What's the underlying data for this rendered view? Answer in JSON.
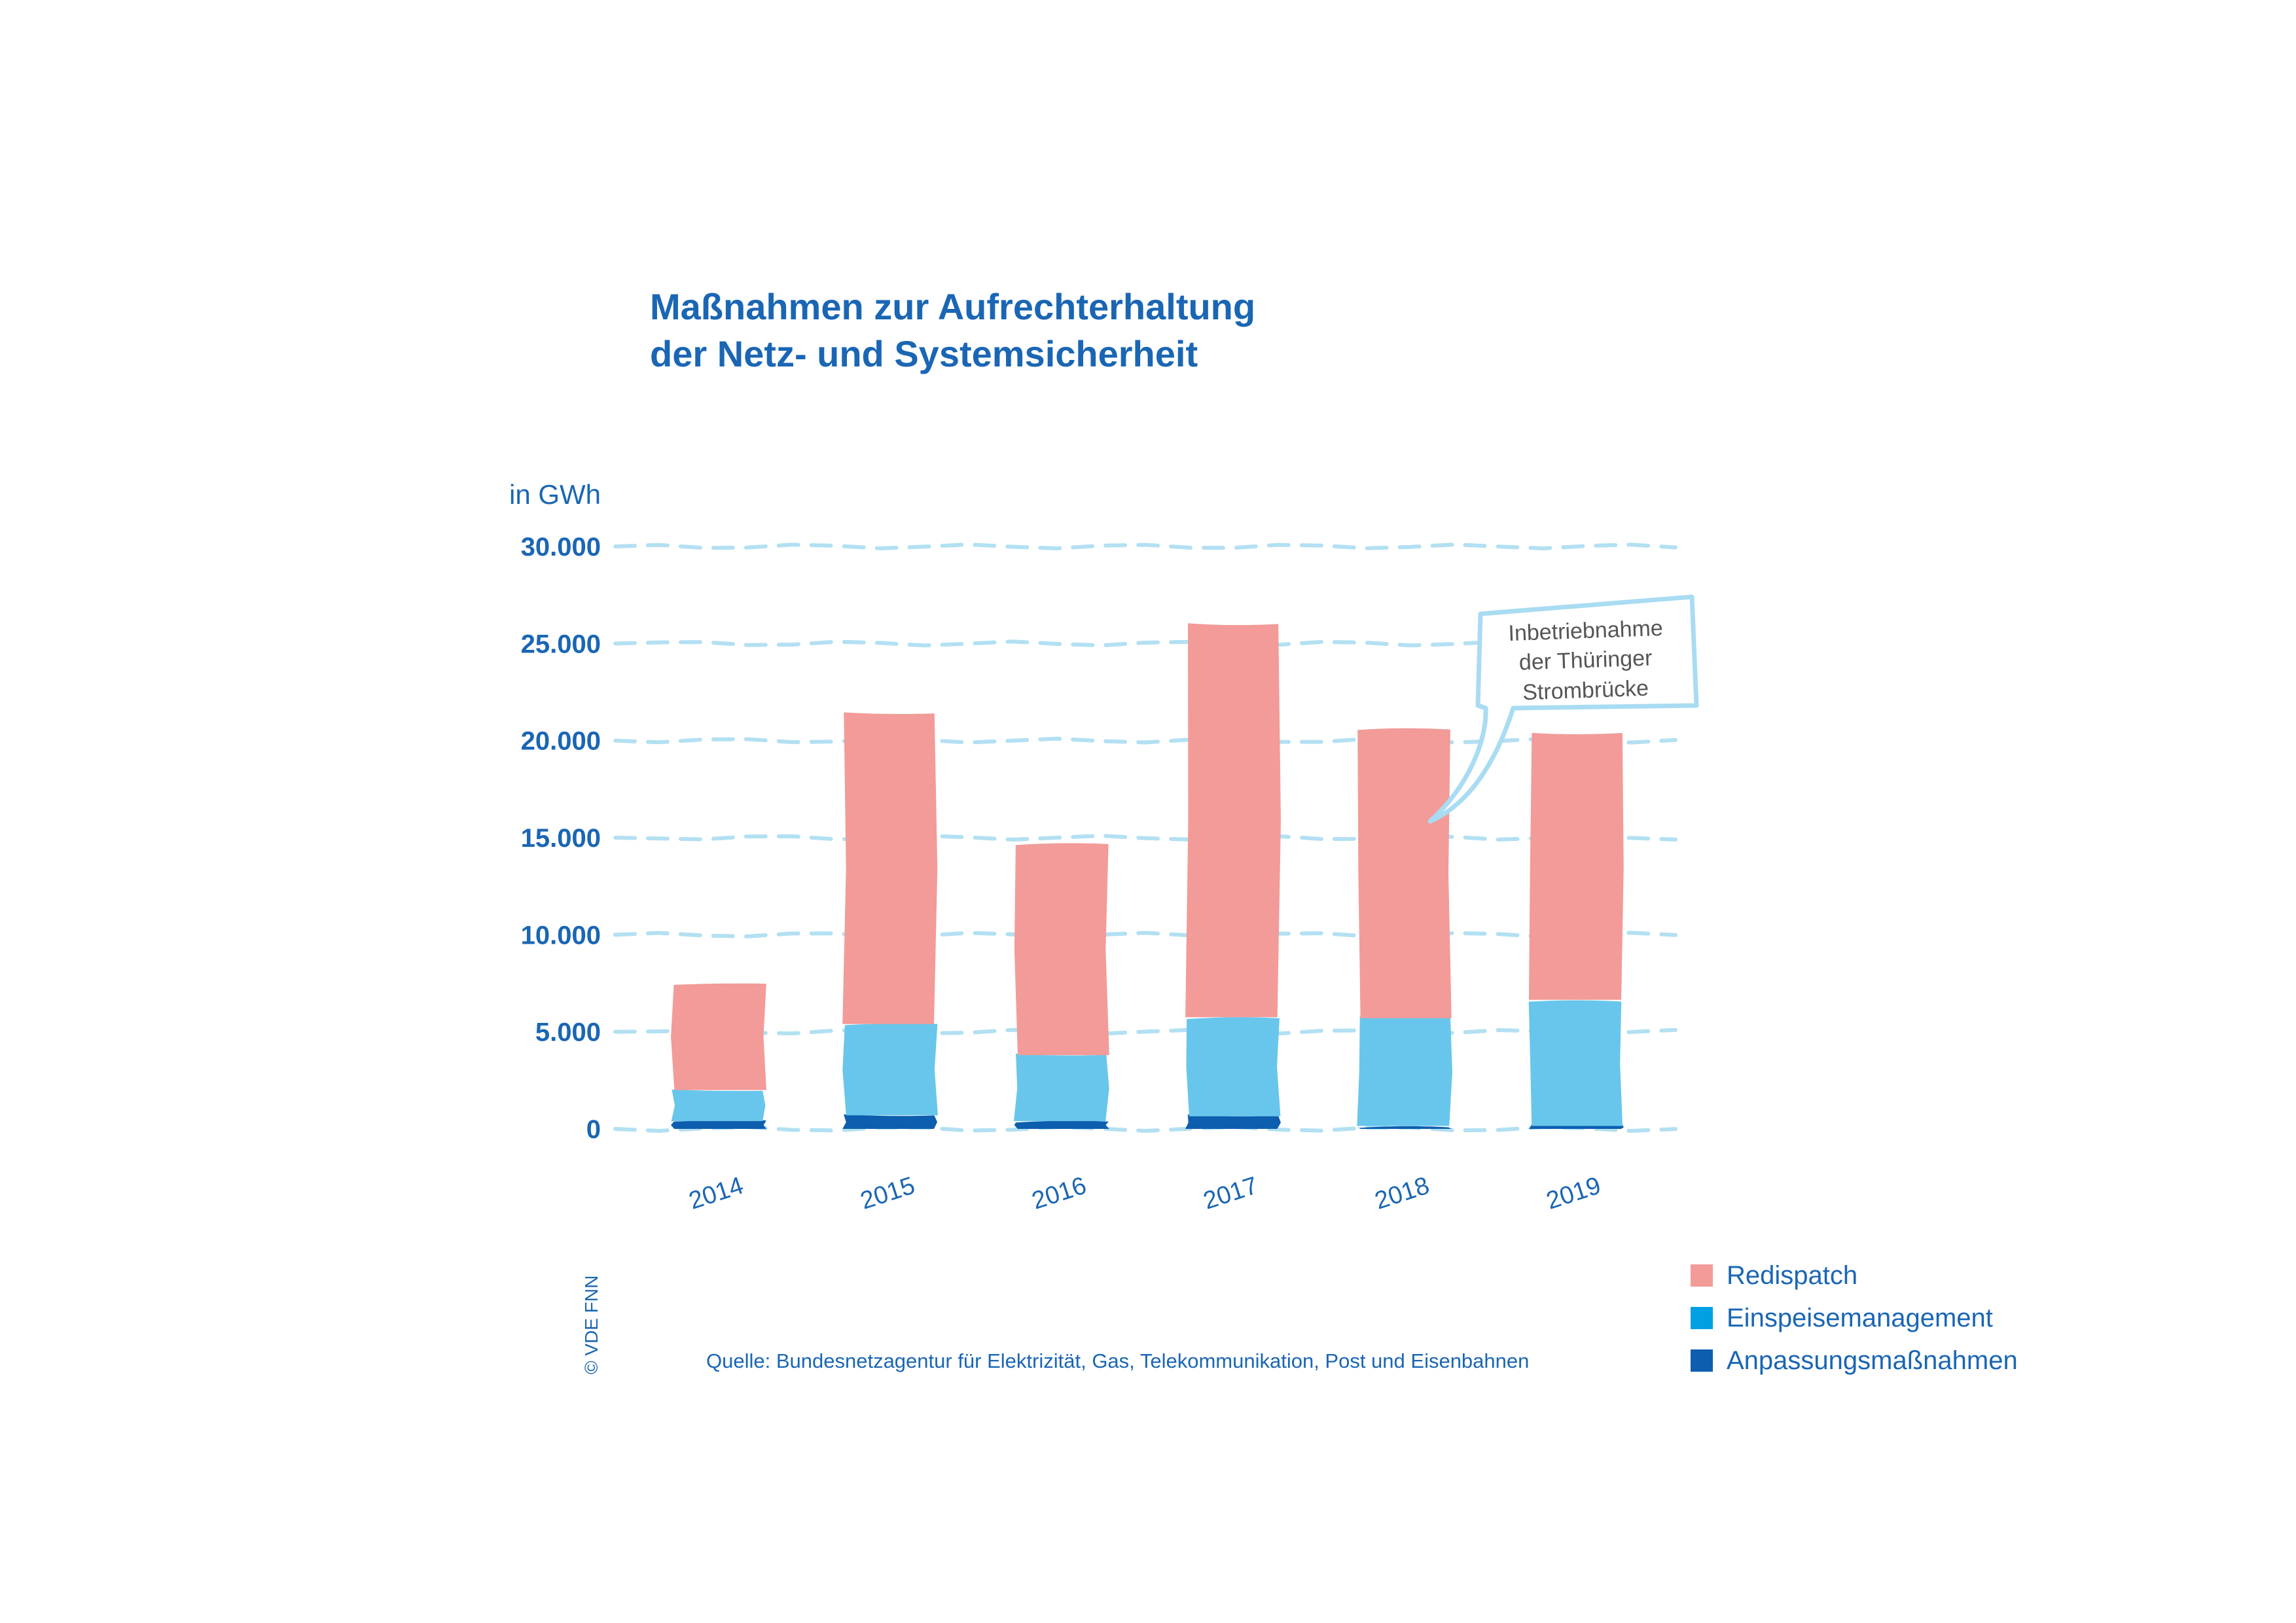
{
  "chart_data": {
    "type": "bar",
    "stacked": true,
    "title_lines": [
      "Maßnahmen zur Aufrechterhaltung",
      "der Netz- und Systemsicherheit"
    ],
    "unit_label": "in GWh",
    "ylim": [
      0,
      30000
    ],
    "y_ticks": [
      {
        "value": 0,
        "label": "0"
      },
      {
        "value": 5000,
        "label": "5.000"
      },
      {
        "value": 10000,
        "label": "10.000"
      },
      {
        "value": 15000,
        "label": "15.000"
      },
      {
        "value": 20000,
        "label": "20.000"
      },
      {
        "value": 25000,
        "label": "25.000"
      },
      {
        "value": 30000,
        "label": "30.000"
      }
    ],
    "grid": true,
    "categories": [
      "2014",
      "2015",
      "2016",
      "2017",
      "2018",
      "2019"
    ],
    "series": [
      {
        "name": "Anpassungsmaßnahmen",
        "color": "#0d5eae",
        "values": [
          400,
          700,
          400,
          650,
          150,
          150
        ]
      },
      {
        "name": "Einspeisemanagement",
        "color": "#68c6ec",
        "values": [
          1600,
          4700,
          3400,
          5100,
          5550,
          6500
        ]
      },
      {
        "name": "Redispatch",
        "color": "#f29b98",
        "values": [
          5450,
          16000,
          10900,
          20200,
          14950,
          13650
        ]
      }
    ],
    "legend_order": [
      "Redispatch",
      "Einspeisemanagement",
      "Anpassungsmaßnahmen"
    ],
    "legend_position": "bottom-right",
    "annotation": {
      "category": "2018",
      "lines": [
        "Inbetriebnahme",
        "der Thüringer",
        "Strombrücke"
      ]
    },
    "source": "Quelle: Bundesnetzagentur für Elektrizität, Gas, Telekommunikation, Post und Eisenbahnen",
    "copyright": "© VDE FNN"
  },
  "colors": {
    "text": "#1a66b4",
    "grid": "#b3e0f2",
    "callout_border": "#a9dcf2"
  }
}
